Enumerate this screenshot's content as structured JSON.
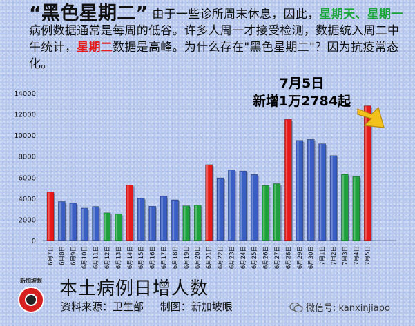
{
  "intro": {
    "quote_title": "“黑色星期二”",
    "text_1": "由于一些诊所周末休息，因此，",
    "sunday": "星期天、",
    "monday": "星期一",
    "text_2": "病例数据通常是每周的低谷。许多人周一才接受检测，数据统入周二中午统计，",
    "tuesday": "星期二",
    "text_3": "数据是高峰。为什么存在\"黑色星期二\"？因为抗疫常态化。"
  },
  "annotation": {
    "line1": "7月5日",
    "line2": "新增1万2784起"
  },
  "footer": {
    "title": "本土病例日增人数",
    "source": "资料来源：卫生部　 制图：新加坡眼",
    "logo_text": "新加坡眼",
    "wechat": "微信号: kanxinjiapo"
  },
  "colors": {
    "red": "#e51a1a",
    "blue": "#3a5fc4",
    "green": "#1fa23d",
    "arrow": "#f2c21b"
  },
  "icons": [
    "logo-icon",
    "wechat-icon",
    "arrow-icon"
  ],
  "chart_data": {
    "type": "bar",
    "categories": [
      "6月7日",
      "6月8日",
      "6月9日",
      "6月10日",
      "6月11日",
      "6月12日",
      "6月13日",
      "6月14日",
      "6月15日",
      "6月16日",
      "6月17日",
      "6月18日",
      "6月19日",
      "6月20日",
      "6月21日",
      "6月22日",
      "6月23日",
      "6月24日",
      "6月25日",
      "6月26日",
      "6月27日",
      "6月28日",
      "6月29日",
      "6月30日",
      "7月1日",
      "7月2日",
      "7月3日",
      "7月4日",
      "7月5日"
    ],
    "values": [
      4600,
      3700,
      3550,
      3080,
      3230,
      2630,
      2510,
      5260,
      4000,
      3250,
      4200,
      3860,
      3290,
      3350,
      7200,
      5950,
      6700,
      6600,
      6260,
      5230,
      5400,
      11500,
      9500,
      9600,
      9180,
      8060,
      6280,
      6070,
      12784
    ],
    "bar_colors": [
      "red",
      "blue",
      "blue",
      "blue",
      "blue",
      "green",
      "green",
      "red",
      "blue",
      "blue",
      "blue",
      "blue",
      "green",
      "green",
      "red",
      "blue",
      "blue",
      "blue",
      "blue",
      "green",
      "green",
      "red",
      "blue",
      "blue",
      "blue",
      "blue",
      "green",
      "green",
      "red"
    ],
    "ylim": [
      0,
      14000
    ],
    "yticks": [
      0,
      2000,
      4000,
      6000,
      8000,
      10000,
      12000,
      14000
    ],
    "xlabel": "",
    "ylabel": "",
    "grid": false,
    "legend": "none"
  }
}
